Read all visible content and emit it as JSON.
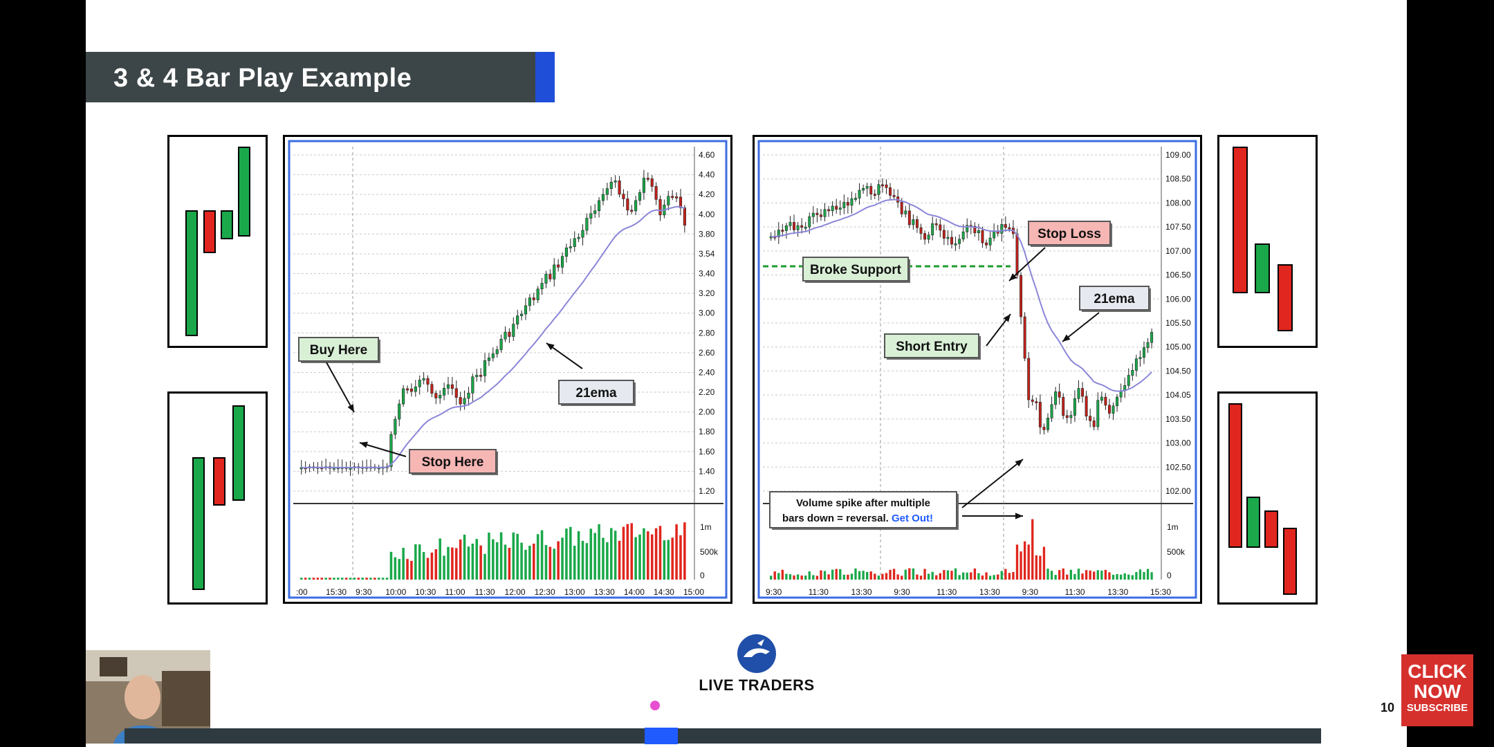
{
  "slide": {
    "title": "3 & 4 Bar Play Example",
    "page_number": "10",
    "logo_text": "LIVE TRADERS",
    "cta_lines": [
      "CLICK",
      "NOW",
      "SUBSCRIBE"
    ]
  },
  "left_chart": {
    "price_ticks": [
      "4.60",
      "4.40",
      "4.20",
      "4.00",
      "3.80",
      "3.54",
      "3.40",
      "3.20",
      "3.00",
      "2.80",
      "2.60",
      "2.40",
      "2.20",
      "2.00",
      "1.80",
      "1.60",
      "1.40",
      "1.20"
    ],
    "volume_ticks": [
      "1m",
      "500k",
      "0"
    ],
    "time_ticks": [
      ":00",
      "15:30",
      "9:30",
      "10:00",
      "10:30",
      "11:00",
      "11:30",
      "12:00",
      "12:30",
      "13:00",
      "13:30",
      "14:00",
      "14:30",
      "15:00"
    ],
    "callouts": {
      "buy": "Buy Here",
      "stop": "Stop Here",
      "ema": "21ema"
    }
  },
  "right_chart": {
    "price_ticks": [
      "109.00",
      "108.50",
      "108.00",
      "107.50",
      "107.00",
      "106.50",
      "106.00",
      "105.50",
      "105.00",
      "104.50",
      "104.05",
      "103.50",
      "103.00",
      "102.50",
      "102.00"
    ],
    "volume_ticks": [
      "1m",
      "500k",
      "0"
    ],
    "time_ticks": [
      "9:30",
      "11:30",
      "13:30",
      "9:30",
      "11:30",
      "13:30",
      "9:30",
      "11:30",
      "13:30",
      "15:30"
    ],
    "callouts": {
      "stop_loss": "Stop Loss",
      "broke_support": "Broke Support",
      "ema": "21ema",
      "short_entry": "Short Entry",
      "volume_note_1": "Volume spike after multiple",
      "volume_note_2": "bars down = reversal.",
      "volume_note_link": "Get Out!"
    }
  },
  "colors": {
    "bull": "#1aa84a",
    "bear": "#e0261e",
    "ema": "#8a86d8",
    "title_bg": "#3c4547",
    "accent": "#1f4fd8"
  },
  "icons": [
    "bull-logo-icon",
    "cursor-icon"
  ]
}
